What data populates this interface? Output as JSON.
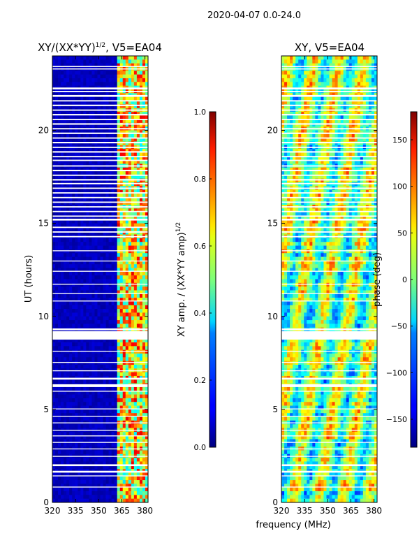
{
  "suptitle": "2020-04-07 0.0-24.0",
  "chart_data": [
    {
      "type": "heatmap",
      "title": "XY/(XX*YY)^1/2, V5=EA04",
      "title_main": "XY/(XX*YY)",
      "title_exp": "1/2",
      "title_tail": ", V5=EA04",
      "xlabel": "frequency (MHz)",
      "ylabel": "UT (hours)",
      "xlim": [
        320,
        382
      ],
      "ylim": [
        0,
        24
      ],
      "xticks": [
        320,
        335,
        350,
        365,
        380
      ],
      "yticks": [
        0,
        5,
        10,
        15,
        20
      ],
      "colormap": "jet",
      "colorbar": {
        "label": "XY amp. / (XX*YY amp)^1/2",
        "label_main": "XY amp. / (XX*YY amp)",
        "label_exp": "1/2",
        "range": [
          0.0,
          1.0
        ],
        "ticks": [
          "0.0",
          "0.2",
          "0.4",
          "0.6",
          "0.8",
          "1.0"
        ]
      },
      "description": "normalized XY amplitude: low (~0.05) below ~362 MHz, elevated (0.4-0.9) in the 362-380 MHz band"
    },
    {
      "type": "heatmap",
      "title": "XY, V5=EA04",
      "xlabel": "frequency (MHz)",
      "ylabel": "",
      "xlim": [
        320,
        382
      ],
      "ylim": [
        0,
        24
      ],
      "xticks": [
        320,
        335,
        350,
        365,
        380
      ],
      "yticks": [
        0,
        5,
        10,
        15,
        20
      ],
      "colormap": "jet",
      "colorbar": {
        "label": "phase (deg)",
        "range": [
          -180,
          180
        ],
        "ticks": [
          "−150",
          "−100",
          "−50",
          "0",
          "50",
          "100",
          "150"
        ]
      },
      "description": "XY phase in degrees, noisy structure with red/blue patches"
    }
  ],
  "flagged_hour_bands": [
    [
      23.27,
      23.33
    ],
    [
      23.4,
      23.46
    ],
    [
      22.2,
      22.3
    ],
    [
      22.05,
      22.12
    ],
    [
      21.8,
      21.9
    ],
    [
      21.55,
      21.62
    ],
    [
      21.3,
      21.38
    ],
    [
      21.05,
      21.12
    ],
    [
      20.8,
      20.88
    ],
    [
      20.55,
      20.62
    ],
    [
      20.3,
      20.38
    ],
    [
      20.05,
      20.12
    ],
    [
      19.8,
      19.88
    ],
    [
      19.55,
      19.62
    ],
    [
      19.3,
      19.38
    ],
    [
      19.05,
      19.12
    ],
    [
      18.8,
      18.88
    ],
    [
      18.55,
      18.62
    ],
    [
      18.35,
      18.42
    ],
    [
      18.05,
      18.12
    ],
    [
      17.8,
      17.88
    ],
    [
      17.55,
      17.62
    ],
    [
      17.3,
      17.38
    ],
    [
      17.1,
      17.17
    ],
    [
      16.85,
      16.92
    ],
    [
      16.6,
      16.67
    ],
    [
      16.35,
      16.42
    ],
    [
      16.1,
      16.17
    ],
    [
      15.85,
      15.92
    ],
    [
      15.6,
      15.67
    ],
    [
      15.35,
      15.42
    ],
    [
      15.15,
      15.25
    ],
    [
      14.75,
      14.82
    ],
    [
      14.5,
      14.57
    ],
    [
      14.25,
      14.32
    ],
    [
      13.5,
      13.55
    ],
    [
      12.95,
      13.0
    ],
    [
      12.4,
      12.45
    ],
    [
      11.7,
      11.75
    ],
    [
      11.2,
      11.25
    ],
    [
      10.8,
      10.85
    ],
    [
      9.25,
      9.35
    ],
    [
      8.75,
      9.2
    ],
    [
      8.1,
      8.15
    ],
    [
      7.5,
      7.55
    ],
    [
      7.05,
      7.1
    ],
    [
      6.6,
      6.7
    ],
    [
      6.2,
      6.35
    ],
    [
      5.95,
      6.0
    ],
    [
      5.0,
      5.05
    ],
    [
      4.6,
      4.65
    ],
    [
      4.25,
      4.3
    ],
    [
      3.85,
      3.9
    ],
    [
      3.55,
      3.6
    ],
    [
      3.2,
      3.25
    ],
    [
      2.85,
      2.9
    ],
    [
      2.45,
      2.5
    ],
    [
      1.95,
      2.05
    ],
    [
      1.6,
      1.7
    ],
    [
      1.4,
      1.45
    ],
    [
      0.8,
      0.85
    ]
  ]
}
